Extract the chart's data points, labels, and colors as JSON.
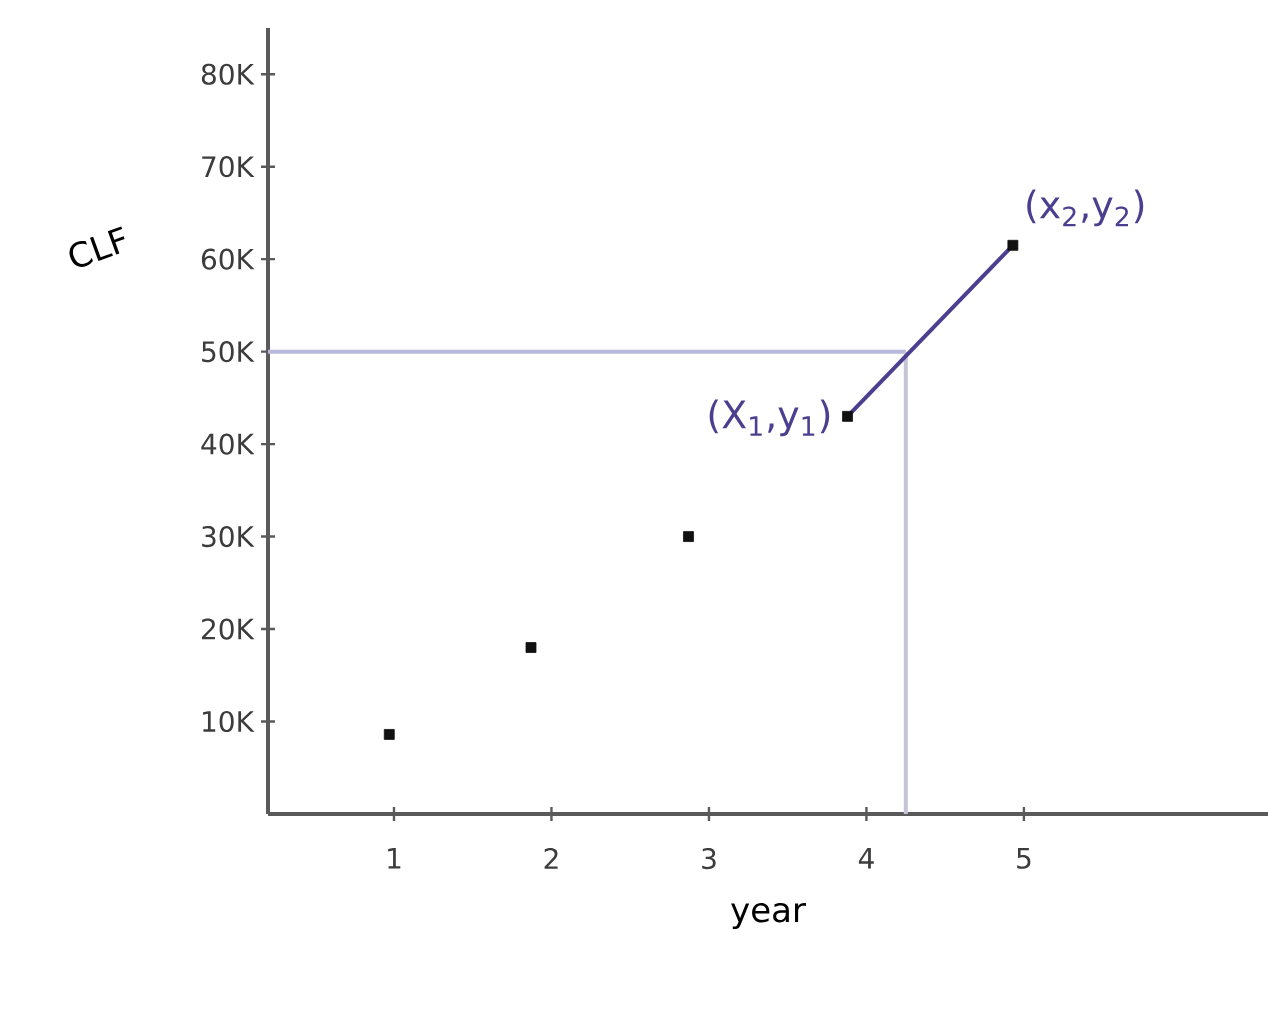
{
  "chart_data": {
    "type": "scatter",
    "xlabel": "year",
    "ylabel": "CLF",
    "xlim": [
      0.2,
      6.55
    ],
    "ylim": [
      0,
      85000
    ],
    "xticks": [
      1,
      2,
      3,
      4,
      5
    ],
    "yticks": [
      {
        "value": 10000,
        "label": "10K"
      },
      {
        "value": 20000,
        "label": "20K"
      },
      {
        "value": 30000,
        "label": "30K"
      },
      {
        "value": 40000,
        "label": "40K"
      },
      {
        "value": 50000,
        "label": "50K"
      },
      {
        "value": 60000,
        "label": "60K"
      },
      {
        "value": 70000,
        "label": "70K"
      },
      {
        "value": 80000,
        "label": "80K"
      }
    ],
    "grid": false,
    "marker": "square",
    "series": [
      {
        "color": "#111111",
        "x": [
          0.97,
          1.87,
          2.87,
          3.88,
          4.93
        ],
        "values": [
          8600,
          18000,
          30000,
          43000,
          61500
        ]
      },
      {
        "type": "line",
        "color": "#4b3f8f",
        "marker": "none",
        "x": [
          3.88,
          4.93
        ],
        "values": [
          43000,
          61500
        ]
      }
    ],
    "ref_lines": [
      {
        "axis": "y",
        "value": 50000,
        "color": "#b9b9dc"
      },
      {
        "axis": "x",
        "value": 4.25,
        "color": "#c4c4d8"
      }
    ],
    "annotations": [
      {
        "text": "(X$_{1}$,y$_{1}$)",
        "x": 3.88,
        "y": 43000
      },
      {
        "text": "(x$_{2}$,y$_{2}$)",
        "x": 4.93,
        "y": 61500
      }
    ]
  }
}
